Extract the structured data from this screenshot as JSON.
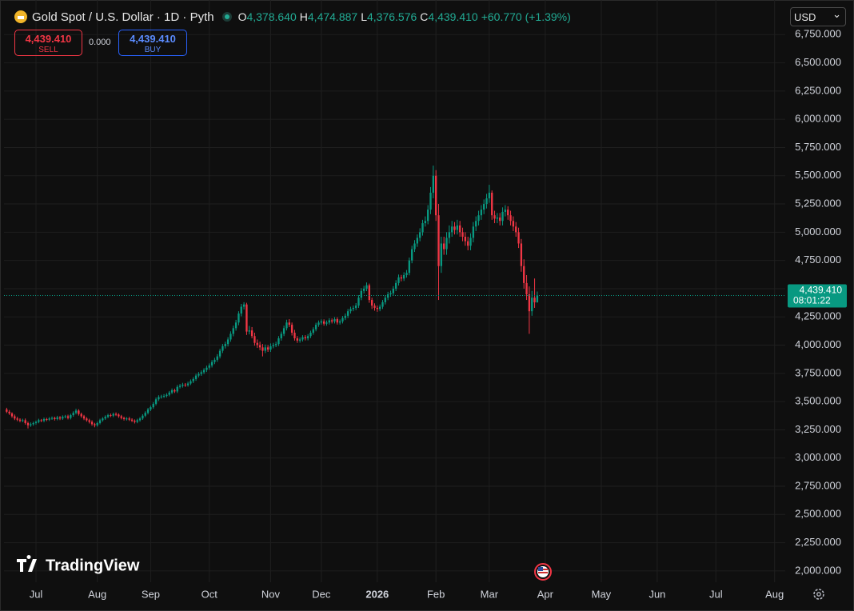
{
  "header": {
    "symbol": "Gold Spot / U.S. Dollar · 1D · Pyth",
    "ohlc": [
      {
        "key": "O",
        "value": "4,378.640"
      },
      {
        "key": "H",
        "value": "4,474.887"
      },
      {
        "key": "L",
        "value": "4,376.576"
      },
      {
        "key": "C",
        "value": "4,439.410"
      }
    ],
    "change": "+60.770 (+1.39%)"
  },
  "trade": {
    "sell_price": "4,439.410",
    "sell": "SELL",
    "spread": "0.000",
    "buy_price": "4,439.410",
    "buy": "BUY"
  },
  "currency": "USD",
  "logo": "TradingView",
  "chart_data": {
    "type": "candlestick",
    "up_color": "#089981",
    "down_color": "#f23645",
    "grid": true,
    "last_price_label": "4,439.410",
    "countdown": "08:01:22",
    "xlim": [
      -1,
      292
    ],
    "xticks": [
      {
        "value": 11,
        "label": "Jul"
      },
      {
        "value": 34,
        "label": "Aug"
      },
      {
        "value": 54,
        "label": "Sep"
      },
      {
        "value": 76,
        "label": "Oct"
      },
      {
        "value": 99,
        "label": "Nov"
      },
      {
        "value": 118,
        "label": "Dec"
      },
      {
        "value": 139,
        "label": "2026"
      },
      {
        "value": 161,
        "label": "Feb"
      },
      {
        "value": 181,
        "label": "Mar"
      },
      {
        "value": 202,
        "label": "Apr"
      },
      {
        "value": 223,
        "label": "May"
      },
      {
        "value": 244,
        "label": "Jun"
      },
      {
        "value": 266,
        "label": "Jul"
      },
      {
        "value": 288,
        "label": "Aug"
      }
    ],
    "ylim": [
      1900,
      7000
    ],
    "yticks": [
      {
        "value": 2000,
        "label": "2,000.000"
      },
      {
        "value": 2250,
        "label": "2,250.000"
      },
      {
        "value": 2500,
        "label": "2,500.000"
      },
      {
        "value": 2750,
        "label": "2,750.000"
      },
      {
        "value": 3000,
        "label": "3,000.000"
      },
      {
        "value": 3250,
        "label": "3,250.000"
      },
      {
        "value": 3500,
        "label": "3,500.000"
      },
      {
        "value": 3750,
        "label": "3,750.000"
      },
      {
        "value": 4000,
        "label": "4,000.000"
      },
      {
        "value": 4250,
        "label": "4,250.000"
      },
      {
        "value": 4500,
        "label": "4,500.000"
      },
      {
        "value": 4750,
        "label": "4,750.000"
      },
      {
        "value": 5000,
        "label": "5,000.000"
      },
      {
        "value": 5250,
        "label": "5,250.000"
      },
      {
        "value": 5500,
        "label": "5,500.000"
      },
      {
        "value": 5750,
        "label": "5,750.000"
      },
      {
        "value": 6000,
        "label": "6,000.000"
      },
      {
        "value": 6250,
        "label": "6,250.000"
      },
      {
        "value": 6500,
        "label": "6,500.000"
      },
      {
        "value": 6750,
        "label": "6,750.000"
      }
    ],
    "x": [
      0,
      1,
      2,
      3,
      4,
      5,
      6,
      7,
      8,
      9,
      10,
      11,
      12,
      13,
      14,
      15,
      16,
      17,
      18,
      19,
      20,
      21,
      22,
      23,
      24,
      25,
      26,
      27,
      28,
      29,
      30,
      31,
      32,
      33,
      34,
      35,
      36,
      37,
      38,
      39,
      40,
      41,
      42,
      43,
      44,
      45,
      46,
      47,
      48,
      49,
      50,
      51,
      52,
      53,
      54,
      55,
      56,
      57,
      58,
      59,
      60,
      61,
      62,
      63,
      64,
      65,
      66,
      67,
      68,
      69,
      70,
      71,
      72,
      73,
      74,
      75,
      76,
      77,
      78,
      79,
      80,
      81,
      82,
      83,
      84,
      85,
      86,
      87,
      88,
      89,
      90,
      91,
      92,
      93,
      94,
      95,
      96,
      97,
      98,
      99,
      100,
      101,
      102,
      103,
      104,
      105,
      106,
      107,
      108,
      109,
      110,
      111,
      112,
      113,
      114,
      115,
      116,
      117,
      118,
      119,
      120,
      121,
      122,
      123,
      124,
      125,
      126,
      127,
      128,
      129,
      130,
      131,
      132,
      133,
      134,
      135,
      136,
      137,
      138,
      139,
      140,
      141,
      142,
      143,
      144,
      145,
      146,
      147,
      148,
      149,
      150,
      151,
      152,
      153,
      154,
      155,
      156,
      157,
      158,
      159,
      160,
      161,
      162,
      163,
      164,
      165,
      166,
      167,
      168,
      169,
      170,
      171,
      172,
      173,
      174,
      175,
      176,
      177,
      178,
      179,
      180,
      181,
      182,
      183,
      184,
      185,
      186,
      187,
      188,
      189,
      190,
      191,
      192,
      193,
      194,
      195,
      196,
      197,
      198,
      199
    ],
    "open": [
      3430,
      3410,
      3395,
      3370,
      3350,
      3340,
      3330,
      3335,
      3310,
      3290,
      3300,
      3310,
      3320,
      3335,
      3330,
      3345,
      3340,
      3350,
      3355,
      3345,
      3360,
      3350,
      3365,
      3370,
      3355,
      3380,
      3400,
      3420,
      3390,
      3370,
      3350,
      3335,
      3320,
      3300,
      3290,
      3310,
      3335,
      3350,
      3365,
      3380,
      3375,
      3390,
      3385,
      3370,
      3355,
      3345,
      3350,
      3340,
      3330,
      3320,
      3335,
      3350,
      3375,
      3400,
      3430,
      3450,
      3480,
      3520,
      3540,
      3545,
      3550,
      3560,
      3580,
      3600,
      3590,
      3630,
      3640,
      3650,
      3645,
      3660,
      3680,
      3700,
      3730,
      3745,
      3760,
      3780,
      3800,
      3820,
      3850,
      3870,
      3900,
      3950,
      3990,
      4010,
      4050,
      4100,
      4150,
      4200,
      4280,
      4340,
      4360,
      4120,
      4130,
      4080,
      4020,
      4000,
      3980,
      3950,
      3980,
      3960,
      3990,
      4000,
      4010,
      4060,
      4100,
      4150,
      4200,
      4180,
      4110,
      4060,
      4040,
      4050,
      4070,
      4060,
      4080,
      4110,
      4140,
      4180,
      4200,
      4210,
      4190,
      4200,
      4220,
      4210,
      4230,
      4200,
      4210,
      4240,
      4260,
      4300,
      4320,
      4330,
      4350,
      4420,
      4480,
      4500,
      4530,
      4400,
      4350,
      4330,
      4320,
      4340,
      4380,
      4420,
      4450,
      4460,
      4500,
      4550,
      4600,
      4590,
      4620,
      4640,
      4750,
      4850,
      4900,
      4950,
      5000,
      5080,
      5100,
      5200,
      5350,
      5500,
      5150,
      4700,
      4900,
      4850,
      4950,
      5000,
      5050,
      5020,
      5060,
      5000,
      4960,
      4920,
      4880,
      4950,
      5050,
      5100,
      5150,
      5200,
      5250,
      5300,
      5350,
      5150,
      5120,
      5130,
      5100,
      5180,
      5200,
      5150,
      5100,
      5050,
      5000,
      4900,
      4700,
      4550,
      4450,
      4300,
      4420,
      4378.64
    ],
    "high": [
      3445,
      3425,
      3405,
      3385,
      3365,
      3352,
      3348,
      3350,
      3322,
      3315,
      3322,
      3332,
      3348,
      3346,
      3358,
      3356,
      3362,
      3368,
      3366,
      3374,
      3372,
      3378,
      3382,
      3384,
      3392,
      3414,
      3436,
      3432,
      3402,
      3382,
      3362,
      3348,
      3334,
      3312,
      3322,
      3348,
      3362,
      3378,
      3392,
      3394,
      3402,
      3404,
      3396,
      3382,
      3366,
      3362,
      3364,
      3352,
      3342,
      3348,
      3362,
      3388,
      3414,
      3444,
      3464,
      3494,
      3536,
      3556,
      3560,
      3566,
      3574,
      3594,
      3616,
      3614,
      3646,
      3656,
      3666,
      3664,
      3676,
      3696,
      3716,
      3746,
      3762,
      3776,
      3796,
      3818,
      3838,
      3868,
      3888,
      3920,
      3968,
      4010,
      4030,
      4070,
      4122,
      4172,
      4224,
      4300,
      4365,
      4380,
      4375,
      4170,
      4160,
      4110,
      4050,
      4030,
      4010,
      4005,
      4000,
      4015,
      4020,
      4030,
      4080,
      4120,
      4172,
      4225,
      4230,
      4200,
      4135,
      4080,
      4068,
      4088,
      4088,
      4098,
      4128,
      4158,
      4198,
      4218,
      4228,
      4228,
      4218,
      4238,
      4236,
      4248,
      4246,
      4228,
      4258,
      4280,
      4320,
      4340,
      4350,
      4372,
      4442,
      4505,
      4525,
      4555,
      4545,
      4420,
      4370,
      4350,
      4360,
      4400,
      4440,
      4472,
      4482,
      4522,
      4575,
      4625,
      4622,
      4645,
      4665,
      4775,
      4880,
      4930,
      4980,
      5035,
      5110,
      5140,
      5240,
      5400,
      5590,
      5550,
      5250,
      4960,
      4960,
      5000,
      5060,
      5100,
      5090,
      5110,
      5100,
      5040,
      5000,
      4960,
      4990,
      5090,
      5140,
      5190,
      5240,
      5290,
      5340,
      5420,
      5370,
      5190,
      5170,
      5170,
      5220,
      5240,
      5230,
      5190,
      5140,
      5090,
      5040,
      4940,
      4760,
      4620,
      4520,
      4480,
      4590,
      4474.887
    ],
    "low": [
      3398,
      3382,
      3356,
      3336,
      3326,
      3316,
      3318,
      3296,
      3262,
      3276,
      3286,
      3296,
      3308,
      3318,
      3316,
      3326,
      3328,
      3338,
      3332,
      3334,
      3336,
      3338,
      3352,
      3342,
      3342,
      3366,
      3386,
      3376,
      3356,
      3336,
      3322,
      3306,
      3286,
      3272,
      3278,
      3298,
      3322,
      3338,
      3352,
      3362,
      3362,
      3372,
      3356,
      3342,
      3332,
      3332,
      3328,
      3318,
      3306,
      3308,
      3322,
      3338,
      3362,
      3386,
      3416,
      3436,
      3466,
      3506,
      3526,
      3532,
      3536,
      3546,
      3566,
      3576,
      3576,
      3616,
      3624,
      3630,
      3632,
      3646,
      3664,
      3684,
      3714,
      3728,
      3744,
      3762,
      3782,
      3802,
      3832,
      3852,
      3882,
      3930,
      3970,
      3988,
      4030,
      4078,
      4128,
      4176,
      4255,
      4315,
      4090,
      4095,
      4060,
      3995,
      3975,
      3955,
      3900,
      3930,
      3940,
      3940,
      3972,
      3982,
      3992,
      4040,
      4080,
      4130,
      4160,
      4085,
      4040,
      4020,
      4022,
      4032,
      4042,
      4042,
      4062,
      4092,
      4122,
      4162,
      4182,
      4172,
      4172,
      4182,
      4192,
      4192,
      4182,
      4182,
      4192,
      4222,
      4240,
      4280,
      4300,
      4310,
      4330,
      4398,
      4458,
      4478,
      4375,
      4320,
      4305,
      4295,
      4300,
      4320,
      4360,
      4398,
      4428,
      4438,
      4478,
      4528,
      4565,
      4568,
      4598,
      4618,
      4725,
      4825,
      4870,
      4920,
      4970,
      5050,
      5070,
      5160,
      5300,
      5100,
      4400,
      4640,
      4800,
      4800,
      4900,
      4960,
      4980,
      4980,
      4960,
      4920,
      4880,
      4840,
      4840,
      4910,
      5010,
      5060,
      5110,
      5160,
      5210,
      5260,
      5110,
      5080,
      5080,
      5060,
      5060,
      5140,
      5110,
      5060,
      5010,
      4960,
      4860,
      4650,
      4500,
      4400,
      4100,
      4260,
      4330,
      4376.576
    ],
    "close": [
      3410,
      3395,
      3370,
      3350,
      3340,
      3330,
      3335,
      3310,
      3290,
      3300,
      3310,
      3320,
      3335,
      3330,
      3345,
      3340,
      3350,
      3355,
      3345,
      3360,
      3350,
      3365,
      3370,
      3355,
      3380,
      3400,
      3420,
      3390,
      3370,
      3350,
      3335,
      3320,
      3300,
      3290,
      3310,
      3335,
      3350,
      3365,
      3380,
      3375,
      3390,
      3385,
      3370,
      3355,
      3345,
      3350,
      3340,
      3330,
      3320,
      3335,
      3350,
      3375,
      3400,
      3430,
      3450,
      3480,
      3520,
      3540,
      3545,
      3550,
      3560,
      3580,
      3600,
      3590,
      3630,
      3640,
      3650,
      3645,
      3660,
      3680,
      3700,
      3730,
      3745,
      3760,
      3780,
      3800,
      3820,
      3850,
      3870,
      3900,
      3950,
      3990,
      4010,
      4050,
      4100,
      4150,
      4200,
      4280,
      4340,
      4360,
      4120,
      4130,
      4080,
      4020,
      4000,
      3980,
      3950,
      3980,
      3960,
      3990,
      4000,
      4010,
      4060,
      4100,
      4150,
      4200,
      4180,
      4110,
      4060,
      4040,
      4050,
      4070,
      4060,
      4080,
      4110,
      4140,
      4180,
      4200,
      4210,
      4190,
      4200,
      4220,
      4210,
      4230,
      4200,
      4210,
      4240,
      4260,
      4300,
      4320,
      4330,
      4350,
      4420,
      4480,
      4500,
      4530,
      4400,
      4350,
      4330,
      4320,
      4340,
      4380,
      4420,
      4450,
      4460,
      4500,
      4550,
      4600,
      4590,
      4620,
      4640,
      4750,
      4850,
      4900,
      4950,
      5000,
      5080,
      5100,
      5200,
      5350,
      5500,
      5150,
      4700,
      4900,
      4850,
      4950,
      5000,
      5050,
      5020,
      5060,
      5000,
      4960,
      4920,
      4880,
      4950,
      5050,
      5100,
      5150,
      5200,
      5250,
      5300,
      5350,
      5150,
      5120,
      5130,
      5100,
      5180,
      5200,
      5150,
      5100,
      5050,
      5000,
      4900,
      4700,
      4550,
      4450,
      4300,
      4420,
      4378.64,
      4439.41
    ]
  }
}
